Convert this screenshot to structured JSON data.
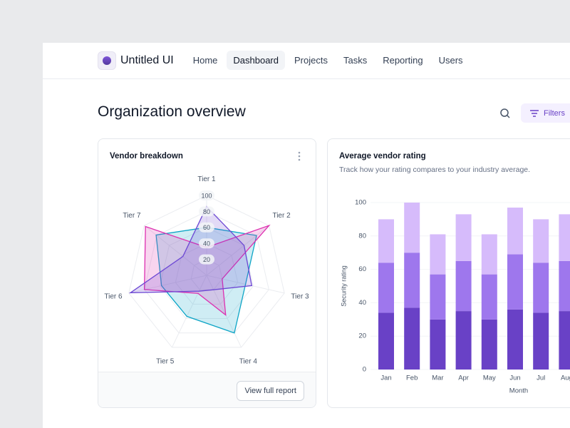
{
  "nav": {
    "brand": "Untitled UI",
    "items": [
      "Home",
      "Dashboard",
      "Projects",
      "Tasks",
      "Reporting",
      "Users"
    ]
  },
  "header": {
    "title": "Organization overview",
    "filters": "Filters"
  },
  "vendor_card": {
    "action": "View full report"
  },
  "chart_data": [
    {
      "type": "radar",
      "title": "Vendor breakdown",
      "categories": [
        "Tier 1",
        "Tier 2",
        "Tier 3",
        "Tier 4",
        "Tier 5",
        "Tier 6",
        "Tier 7"
      ],
      "rlim": [
        0,
        100
      ],
      "rticks": [
        20,
        40,
        60,
        80,
        100
      ],
      "series": [
        {
          "color": "#0ea5c6",
          "values": [
            60,
            80,
            50,
            80,
            57,
            58,
            81
          ]
        },
        {
          "color": "#dd2fb0",
          "values": [
            35,
            100,
            20,
            55,
            25,
            80,
            98
          ]
        },
        {
          "color": "#6d48d4",
          "values": [
            86,
            60,
            58,
            20,
            22,
            98,
            38
          ]
        }
      ]
    },
    {
      "type": "bar",
      "stacked": true,
      "title": "Average vendor rating",
      "subtitle": "Track how your rating compares to your industry average.",
      "x_label": "Month",
      "y_label": "Security rating",
      "categories": [
        "Jan",
        "Feb",
        "Mar",
        "Apr",
        "May",
        "Jun",
        "Jul",
        "Aug"
      ],
      "ylim": [
        0,
        100
      ],
      "yticks": [
        0,
        20,
        40,
        60,
        80,
        100
      ],
      "grid": true,
      "series": [
        {
          "color": "#6941c6",
          "values": [
            34,
            37,
            30,
            35,
            30,
            36,
            34,
            35
          ]
        },
        {
          "color": "#9e77ed",
          "values": [
            30,
            33,
            27,
            30,
            27,
            33,
            30,
            30
          ]
        },
        {
          "color": "#d6bbfb",
          "values": [
            26,
            30,
            24,
            28,
            24,
            28,
            26,
            28
          ]
        }
      ]
    }
  ]
}
